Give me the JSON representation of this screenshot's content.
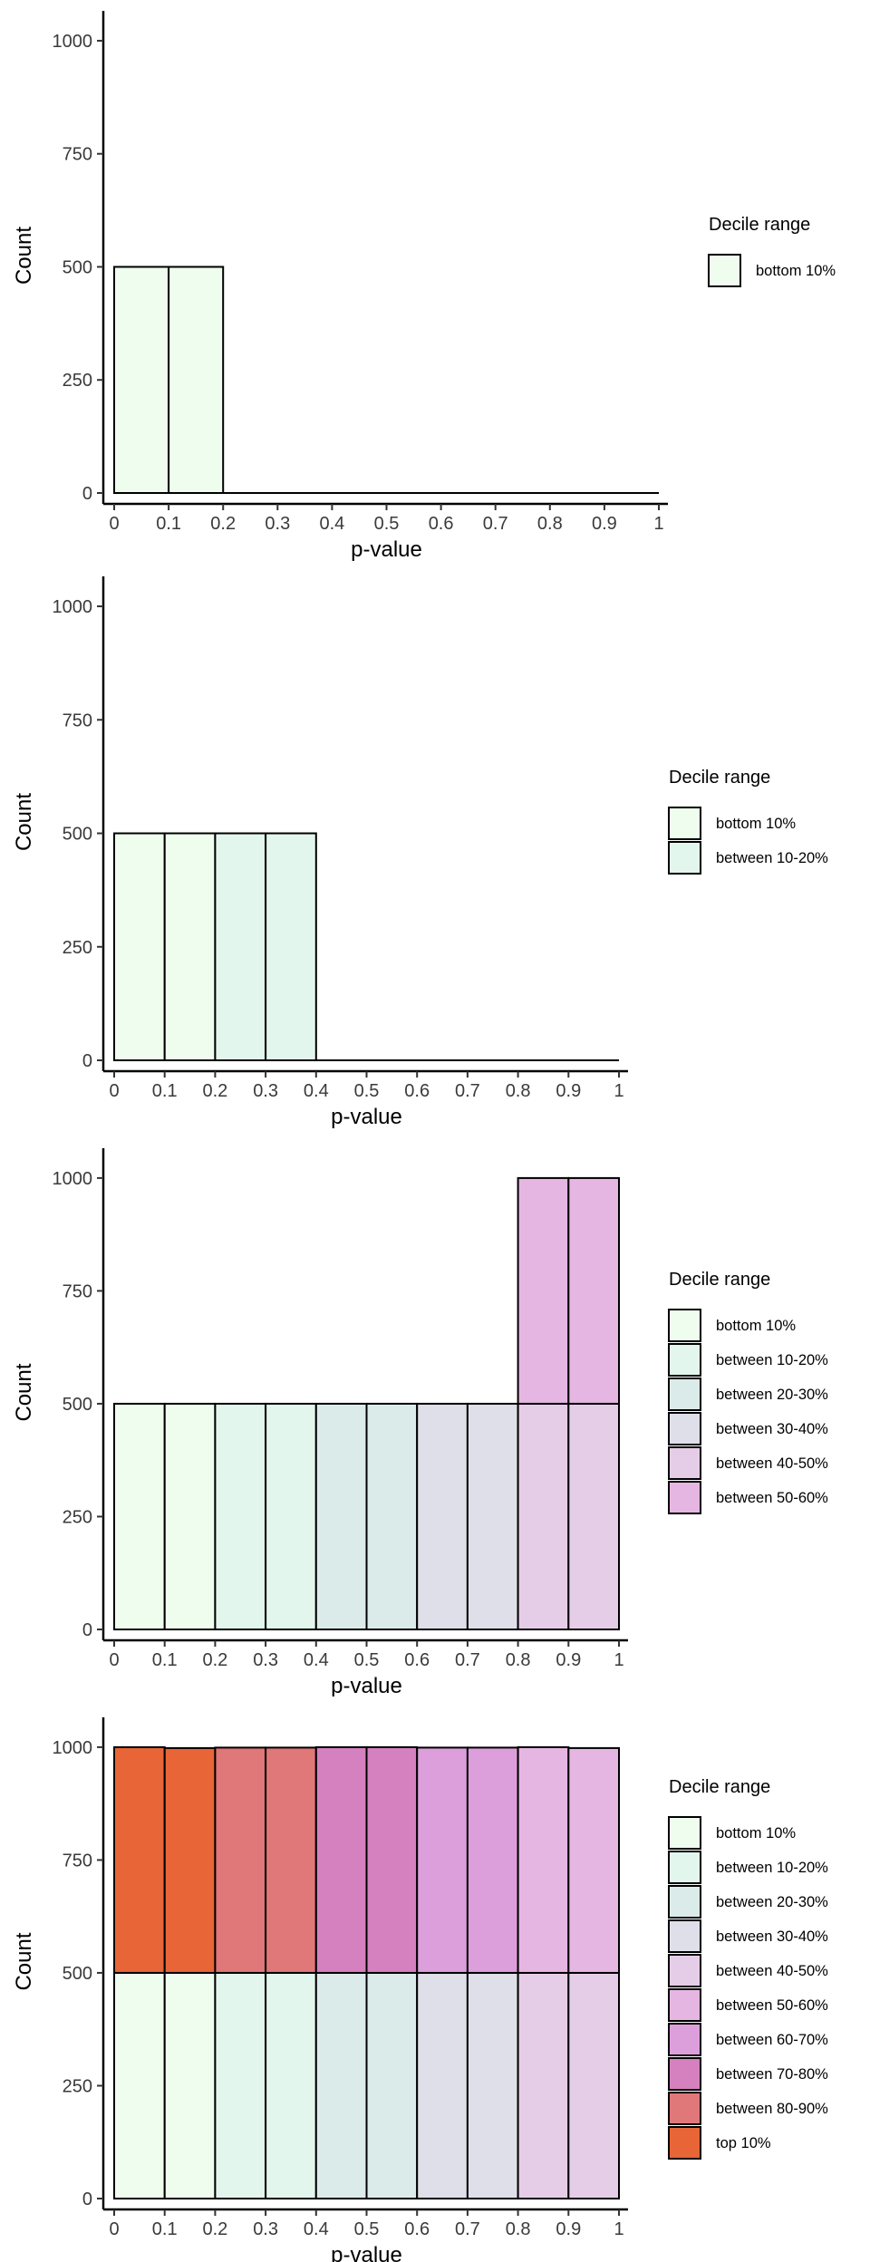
{
  "colors": {
    "bottom 10%": "#effdee",
    "between 10-20%": "#e3f6ed",
    "between 20-30%": "#dbebea",
    "between 30-40%": "#dfdfea",
    "between 40-50%": "#e6cde7",
    "between 50-60%": "#e6b6e3",
    "between 60-70%": "#dd9fdb",
    "between 70-80%": "#d581bf",
    "between 80-90%": "#e07779",
    "top 10%": "#e86537"
  },
  "chart_data": [
    {
      "type": "bar",
      "title": "",
      "xlabel": "p-value",
      "ylabel": "Count",
      "xlim": [
        0,
        1
      ],
      "ylim": [
        0,
        1050
      ],
      "x_ticks": [
        "0",
        "0.1",
        "0.2",
        "0.3",
        "0.4",
        "0.5",
        "0.6",
        "0.7",
        "0.8",
        "0.9",
        "1"
      ],
      "y_ticks": [
        "0",
        "250",
        "500",
        "750",
        "1000"
      ],
      "legend_title": "Decile range",
      "legend": [
        "bottom 10%"
      ],
      "bins": [
        {
          "x0": 0.0,
          "x1": 0.1,
          "layers": [
            {
              "group": "bottom 10%",
              "count": 500
            }
          ]
        },
        {
          "x0": 0.1,
          "x1": 0.2,
          "layers": [
            {
              "group": "bottom 10%",
              "count": 500
            }
          ]
        }
      ]
    },
    {
      "type": "bar",
      "title": "",
      "xlabel": "p-value",
      "ylabel": "Count",
      "xlim": [
        0,
        1
      ],
      "ylim": [
        0,
        1050
      ],
      "x_ticks": [
        "0",
        "0.1",
        "0.2",
        "0.3",
        "0.4",
        "0.5",
        "0.6",
        "0.7",
        "0.8",
        "0.9",
        "1"
      ],
      "y_ticks": [
        "0",
        "250",
        "500",
        "750",
        "1000"
      ],
      "legend_title": "Decile range",
      "legend": [
        "bottom 10%",
        "between 10-20%"
      ],
      "bins": [
        {
          "x0": 0.0,
          "x1": 0.1,
          "layers": [
            {
              "group": "bottom 10%",
              "count": 500
            }
          ]
        },
        {
          "x0": 0.1,
          "x1": 0.2,
          "layers": [
            {
              "group": "bottom 10%",
              "count": 500
            }
          ]
        },
        {
          "x0": 0.2,
          "x1": 0.3,
          "layers": [
            {
              "group": "between 10-20%",
              "count": 500
            }
          ]
        },
        {
          "x0": 0.3,
          "x1": 0.4,
          "layers": [
            {
              "group": "between 10-20%",
              "count": 500
            }
          ]
        }
      ]
    },
    {
      "type": "bar",
      "title": "",
      "xlabel": "p-value",
      "ylabel": "Count",
      "xlim": [
        0,
        1
      ],
      "ylim": [
        0,
        1050
      ],
      "x_ticks": [
        "0",
        "0.1",
        "0.2",
        "0.3",
        "0.4",
        "0.5",
        "0.6",
        "0.7",
        "0.8",
        "0.9",
        "1"
      ],
      "y_ticks": [
        "0",
        "250",
        "500",
        "750",
        "1000"
      ],
      "legend_title": "Decile range",
      "legend": [
        "bottom 10%",
        "between 10-20%",
        "between 20-30%",
        "between 30-40%",
        "between 40-50%",
        "between 50-60%"
      ],
      "bins": [
        {
          "x0": 0.0,
          "x1": 0.1,
          "layers": [
            {
              "group": "bottom 10%",
              "count": 500
            }
          ]
        },
        {
          "x0": 0.1,
          "x1": 0.2,
          "layers": [
            {
              "group": "bottom 10%",
              "count": 500
            }
          ]
        },
        {
          "x0": 0.2,
          "x1": 0.3,
          "layers": [
            {
              "group": "between 10-20%",
              "count": 500
            }
          ]
        },
        {
          "x0": 0.3,
          "x1": 0.4,
          "layers": [
            {
              "group": "between 10-20%",
              "count": 500
            }
          ]
        },
        {
          "x0": 0.4,
          "x1": 0.5,
          "layers": [
            {
              "group": "between 20-30%",
              "count": 500
            }
          ]
        },
        {
          "x0": 0.5,
          "x1": 0.6,
          "layers": [
            {
              "group": "between 20-30%",
              "count": 500
            }
          ]
        },
        {
          "x0": 0.6,
          "x1": 0.7,
          "layers": [
            {
              "group": "between 30-40%",
              "count": 500
            }
          ]
        },
        {
          "x0": 0.7,
          "x1": 0.8,
          "layers": [
            {
              "group": "between 30-40%",
              "count": 500
            }
          ]
        },
        {
          "x0": 0.8,
          "x1": 0.9,
          "layers": [
            {
              "group": "between 40-50%",
              "count": 500
            },
            {
              "group": "between 50-60%",
              "count": 500
            }
          ]
        },
        {
          "x0": 0.9,
          "x1": 1.0,
          "layers": [
            {
              "group": "between 40-50%",
              "count": 500
            },
            {
              "group": "between 50-60%",
              "count": 500
            }
          ]
        }
      ]
    },
    {
      "type": "bar",
      "title": "",
      "xlabel": "p-value",
      "ylabel": "Count",
      "xlim": [
        0,
        1
      ],
      "ylim": [
        0,
        1050
      ],
      "x_ticks": [
        "0",
        "0.1",
        "0.2",
        "0.3",
        "0.4",
        "0.5",
        "0.6",
        "0.7",
        "0.8",
        "0.9",
        "1"
      ],
      "y_ticks": [
        "0",
        "250",
        "500",
        "750",
        "1000"
      ],
      "legend_title": "Decile range",
      "legend": [
        "bottom 10%",
        "between 10-20%",
        "between 20-30%",
        "between 30-40%",
        "between 40-50%",
        "between 50-60%",
        "between 60-70%",
        "between 70-80%",
        "between 80-90%",
        "top 10%"
      ],
      "bins": [
        {
          "x0": 0.0,
          "x1": 0.1,
          "layers": [
            {
              "group": "bottom 10%",
              "count": 500
            },
            {
              "group": "top 10%",
              "count": 500
            }
          ]
        },
        {
          "x0": 0.1,
          "x1": 0.2,
          "layers": [
            {
              "group": "bottom 10%",
              "count": 500
            },
            {
              "group": "top 10%",
              "count": 498
            }
          ]
        },
        {
          "x0": 0.2,
          "x1": 0.3,
          "layers": [
            {
              "group": "between 10-20%",
              "count": 500
            },
            {
              "group": "between 80-90%",
              "count": 499
            }
          ]
        },
        {
          "x0": 0.3,
          "x1": 0.4,
          "layers": [
            {
              "group": "between 10-20%",
              "count": 500
            },
            {
              "group": "between 80-90%",
              "count": 499
            }
          ]
        },
        {
          "x0": 0.4,
          "x1": 0.5,
          "layers": [
            {
              "group": "between 20-30%",
              "count": 500
            },
            {
              "group": "between 70-80%",
              "count": 500
            }
          ]
        },
        {
          "x0": 0.5,
          "x1": 0.6,
          "layers": [
            {
              "group": "between 20-30%",
              "count": 500
            },
            {
              "group": "between 70-80%",
              "count": 500
            }
          ]
        },
        {
          "x0": 0.6,
          "x1": 0.7,
          "layers": [
            {
              "group": "between 30-40%",
              "count": 500
            },
            {
              "group": "between 60-70%",
              "count": 499
            }
          ]
        },
        {
          "x0": 0.7,
          "x1": 0.8,
          "layers": [
            {
              "group": "between 30-40%",
              "count": 500
            },
            {
              "group": "between 60-70%",
              "count": 499
            }
          ]
        },
        {
          "x0": 0.8,
          "x1": 0.9,
          "layers": [
            {
              "group": "between 40-50%",
              "count": 500
            },
            {
              "group": "between 50-60%",
              "count": 500
            }
          ]
        },
        {
          "x0": 0.9,
          "x1": 1.0,
          "layers": [
            {
              "group": "between 40-50%",
              "count": 500
            },
            {
              "group": "between 50-60%",
              "count": 498
            }
          ]
        }
      ]
    }
  ]
}
